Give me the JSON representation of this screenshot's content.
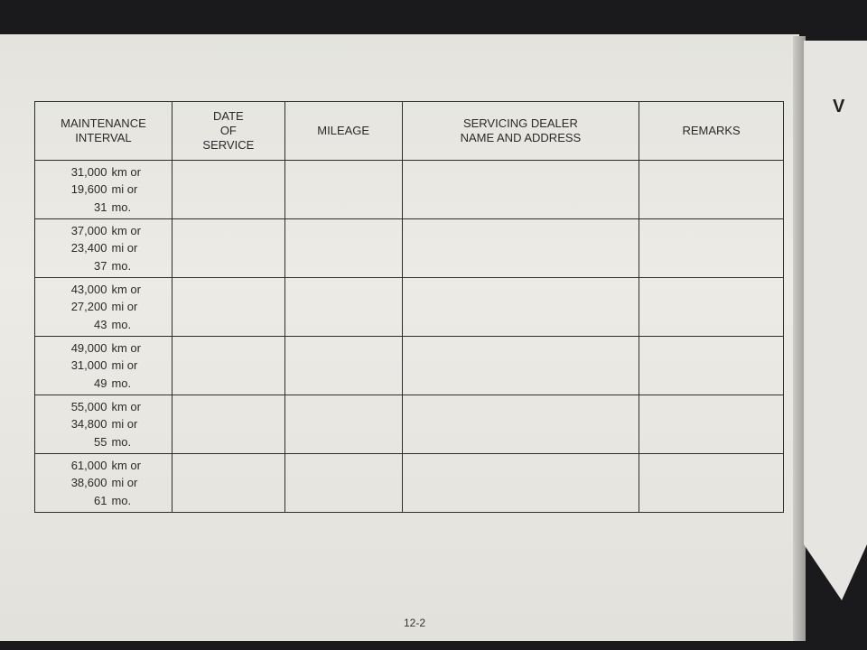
{
  "headers": [
    "MAINTENANCE INTERVAL",
    "DATE OF SERVICE",
    "MILEAGE",
    "SERVICING DEALER NAME AND ADDRESS",
    "REMARKS"
  ],
  "rows": [
    {
      "km": "31,000",
      "mi": "19,600",
      "mo": "31"
    },
    {
      "km": "37,000",
      "mi": "23,400",
      "mo": "37"
    },
    {
      "km": "43,000",
      "mi": "27,200",
      "mo": "43"
    },
    {
      "km": "49,000",
      "mi": "31,000",
      "mo": "49"
    },
    {
      "km": "55,000",
      "mi": "34,800",
      "mo": "55"
    },
    {
      "km": "61,000",
      "mi": "38,600",
      "mo": "61"
    }
  ],
  "units": {
    "km": "km or",
    "mi": "mi or",
    "mo": "mo."
  },
  "page_number": "12-2",
  "right_page_letter": "V"
}
